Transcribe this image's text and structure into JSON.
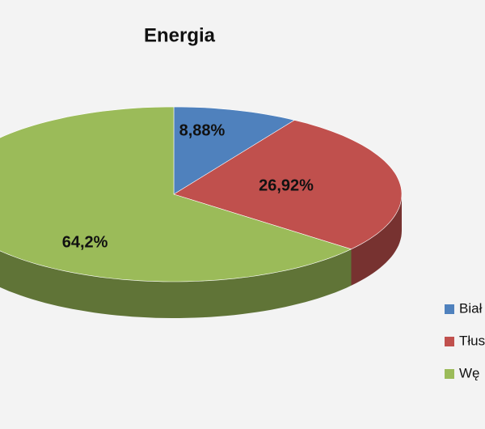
{
  "chart_data": {
    "type": "pie",
    "title": "Energia",
    "categories": [
      "Biał",
      "Tłus",
      "Wę"
    ],
    "values": [
      8.88,
      26.92,
      64.2
    ],
    "value_labels": [
      "8,88%",
      "26,92%",
      "64,2%"
    ],
    "colors": [
      "#4f81bd",
      "#c0504d",
      "#9bbb59"
    ],
    "legend": "right"
  }
}
